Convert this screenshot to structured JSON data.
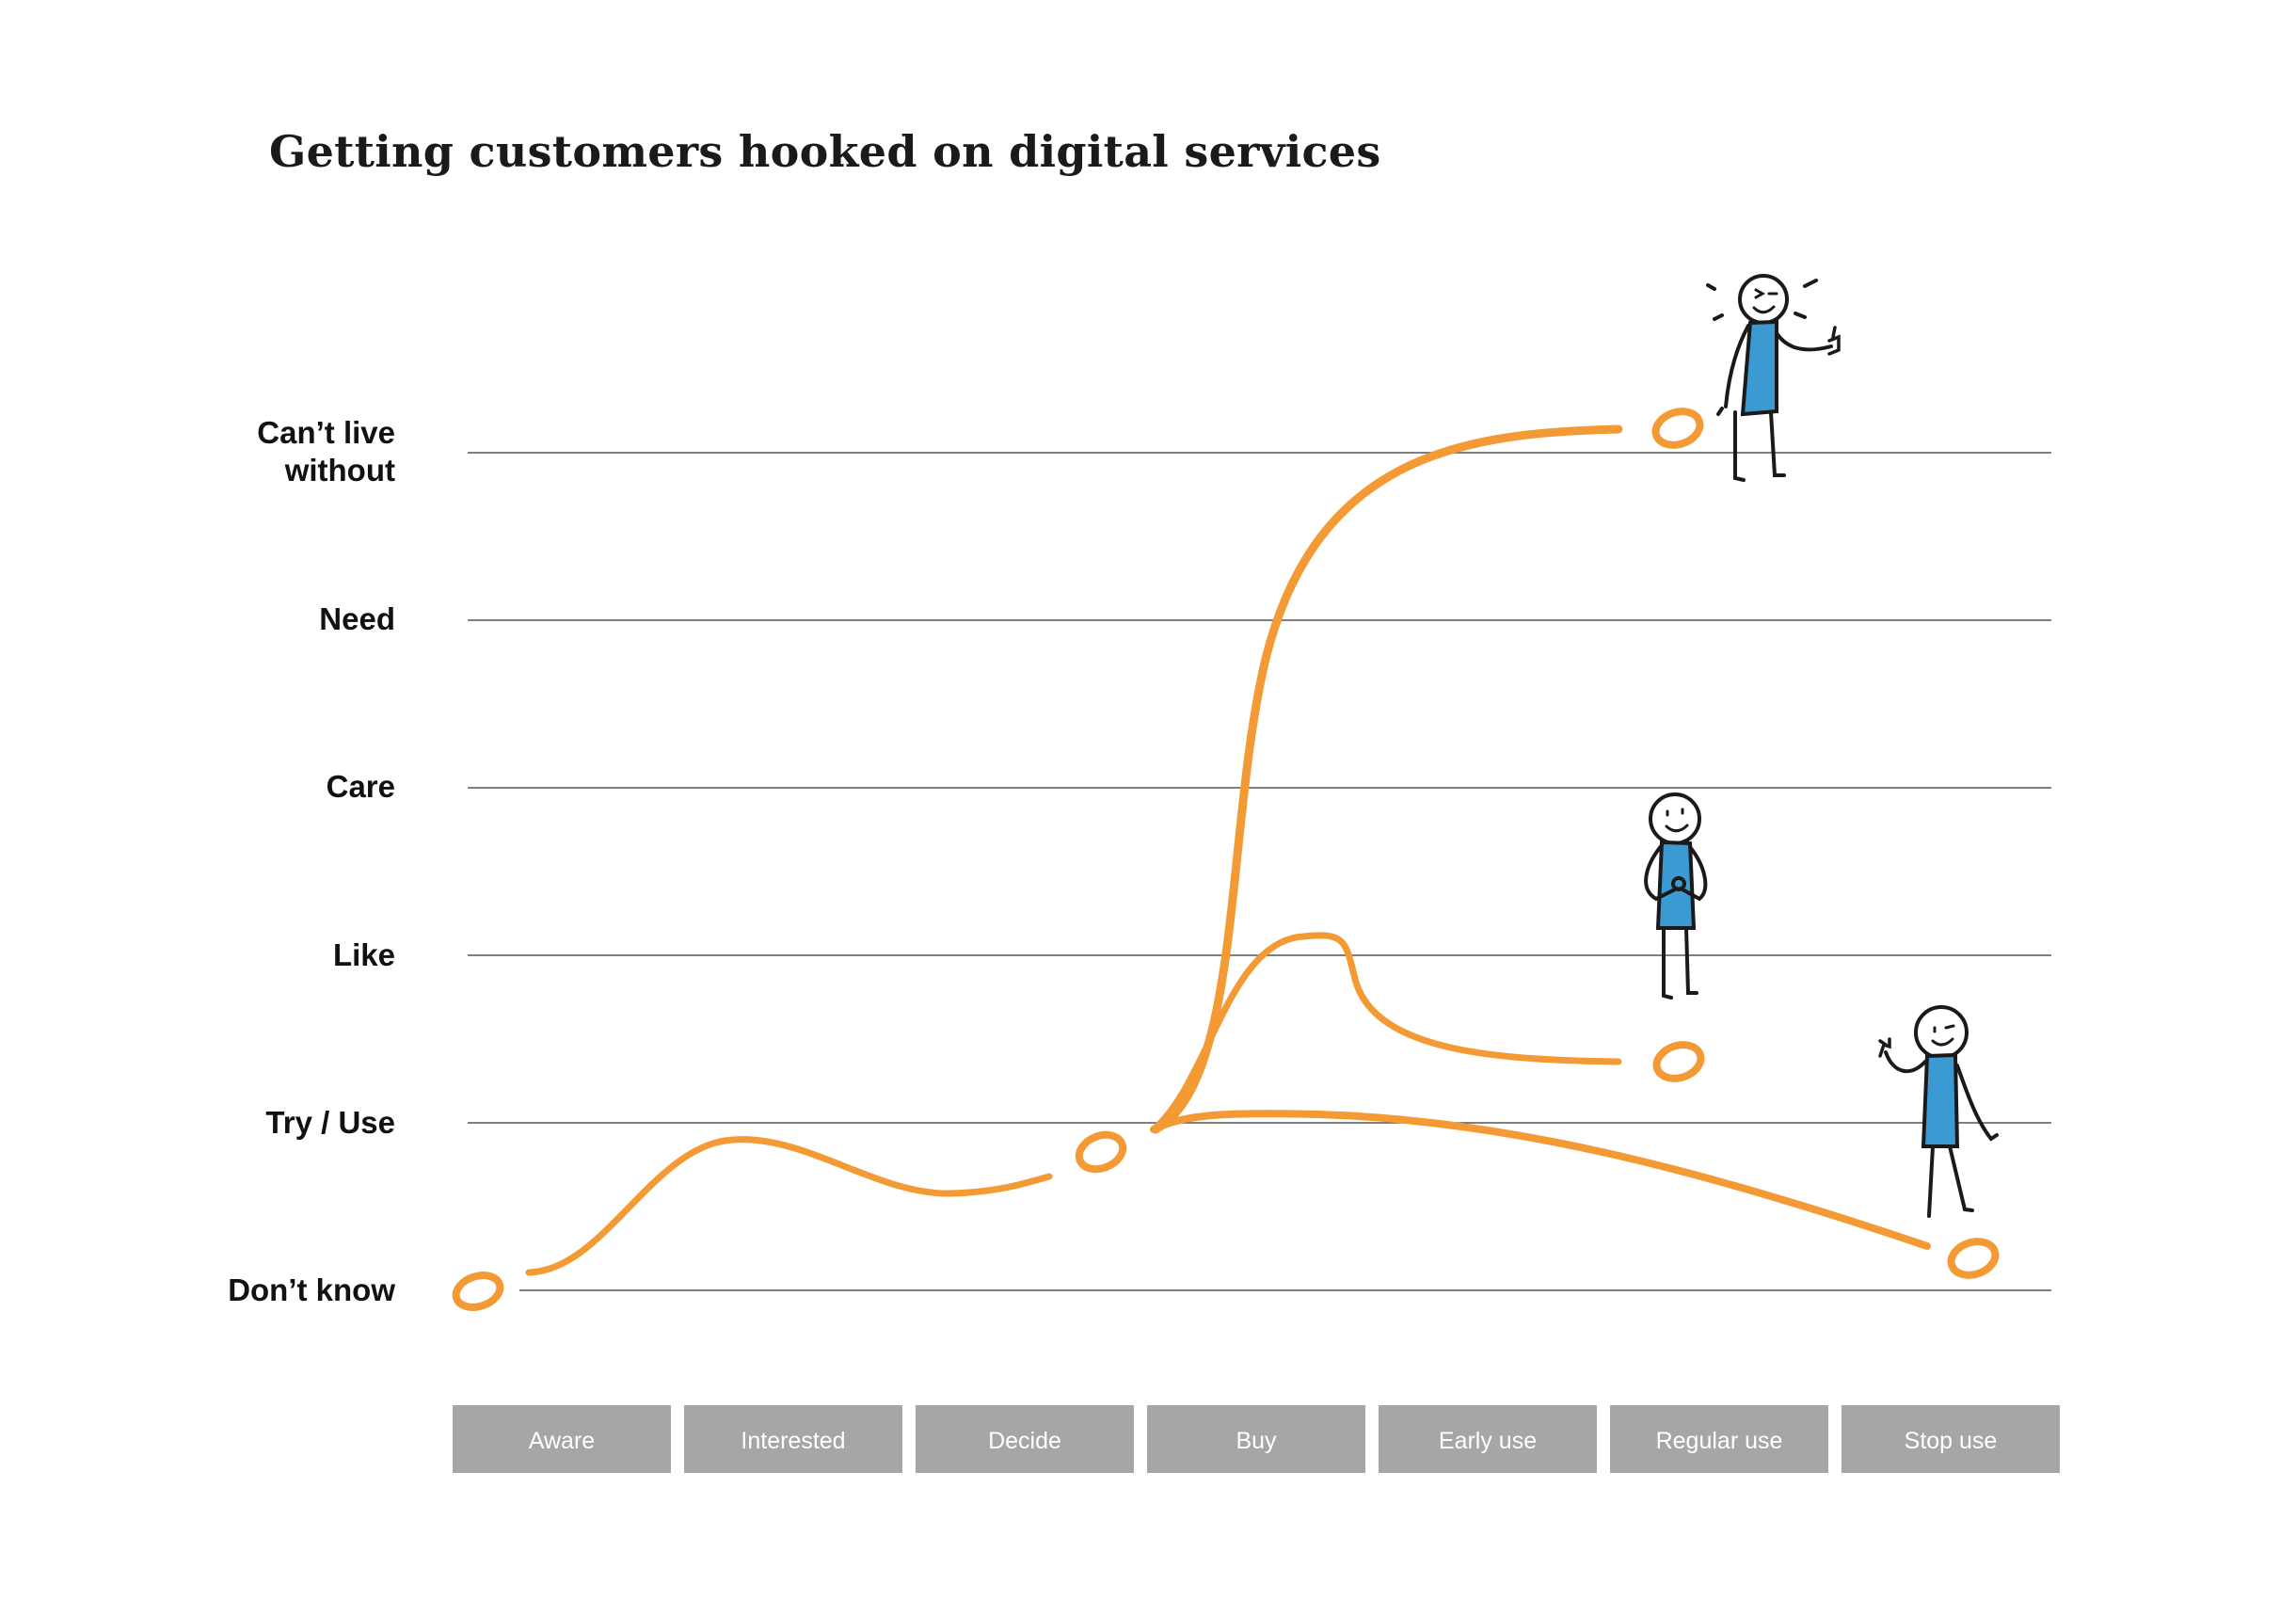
{
  "title": "Getting customers hooked on digital services",
  "levels": [
    {
      "label": "Can’t live\nwithout"
    },
    {
      "label": "Need"
    },
    {
      "label": "Care"
    },
    {
      "label": "Like"
    },
    {
      "label": "Try / Use"
    },
    {
      "label": "Don’t know"
    }
  ],
  "stages": [
    "Aware",
    "Interested",
    "Decide",
    "Buy",
    "Early use",
    "Regular use",
    "Stop use"
  ],
  "colors": {
    "curve": "#f39a35",
    "shirt": "#3b9ad2",
    "stage_box": "#a6a6a6",
    "grid": "#555555"
  },
  "journeys": [
    {
      "outcome": "Can’t live without"
    },
    {
      "outcome": "Like / Try"
    },
    {
      "outcome": "Stop use"
    }
  ],
  "figures": [
    {
      "mood": "excited",
      "gesture": "thumbs-up"
    },
    {
      "mood": "content",
      "gesture": "hands-clasped"
    },
    {
      "mood": "winking",
      "gesture": "waving"
    }
  ]
}
